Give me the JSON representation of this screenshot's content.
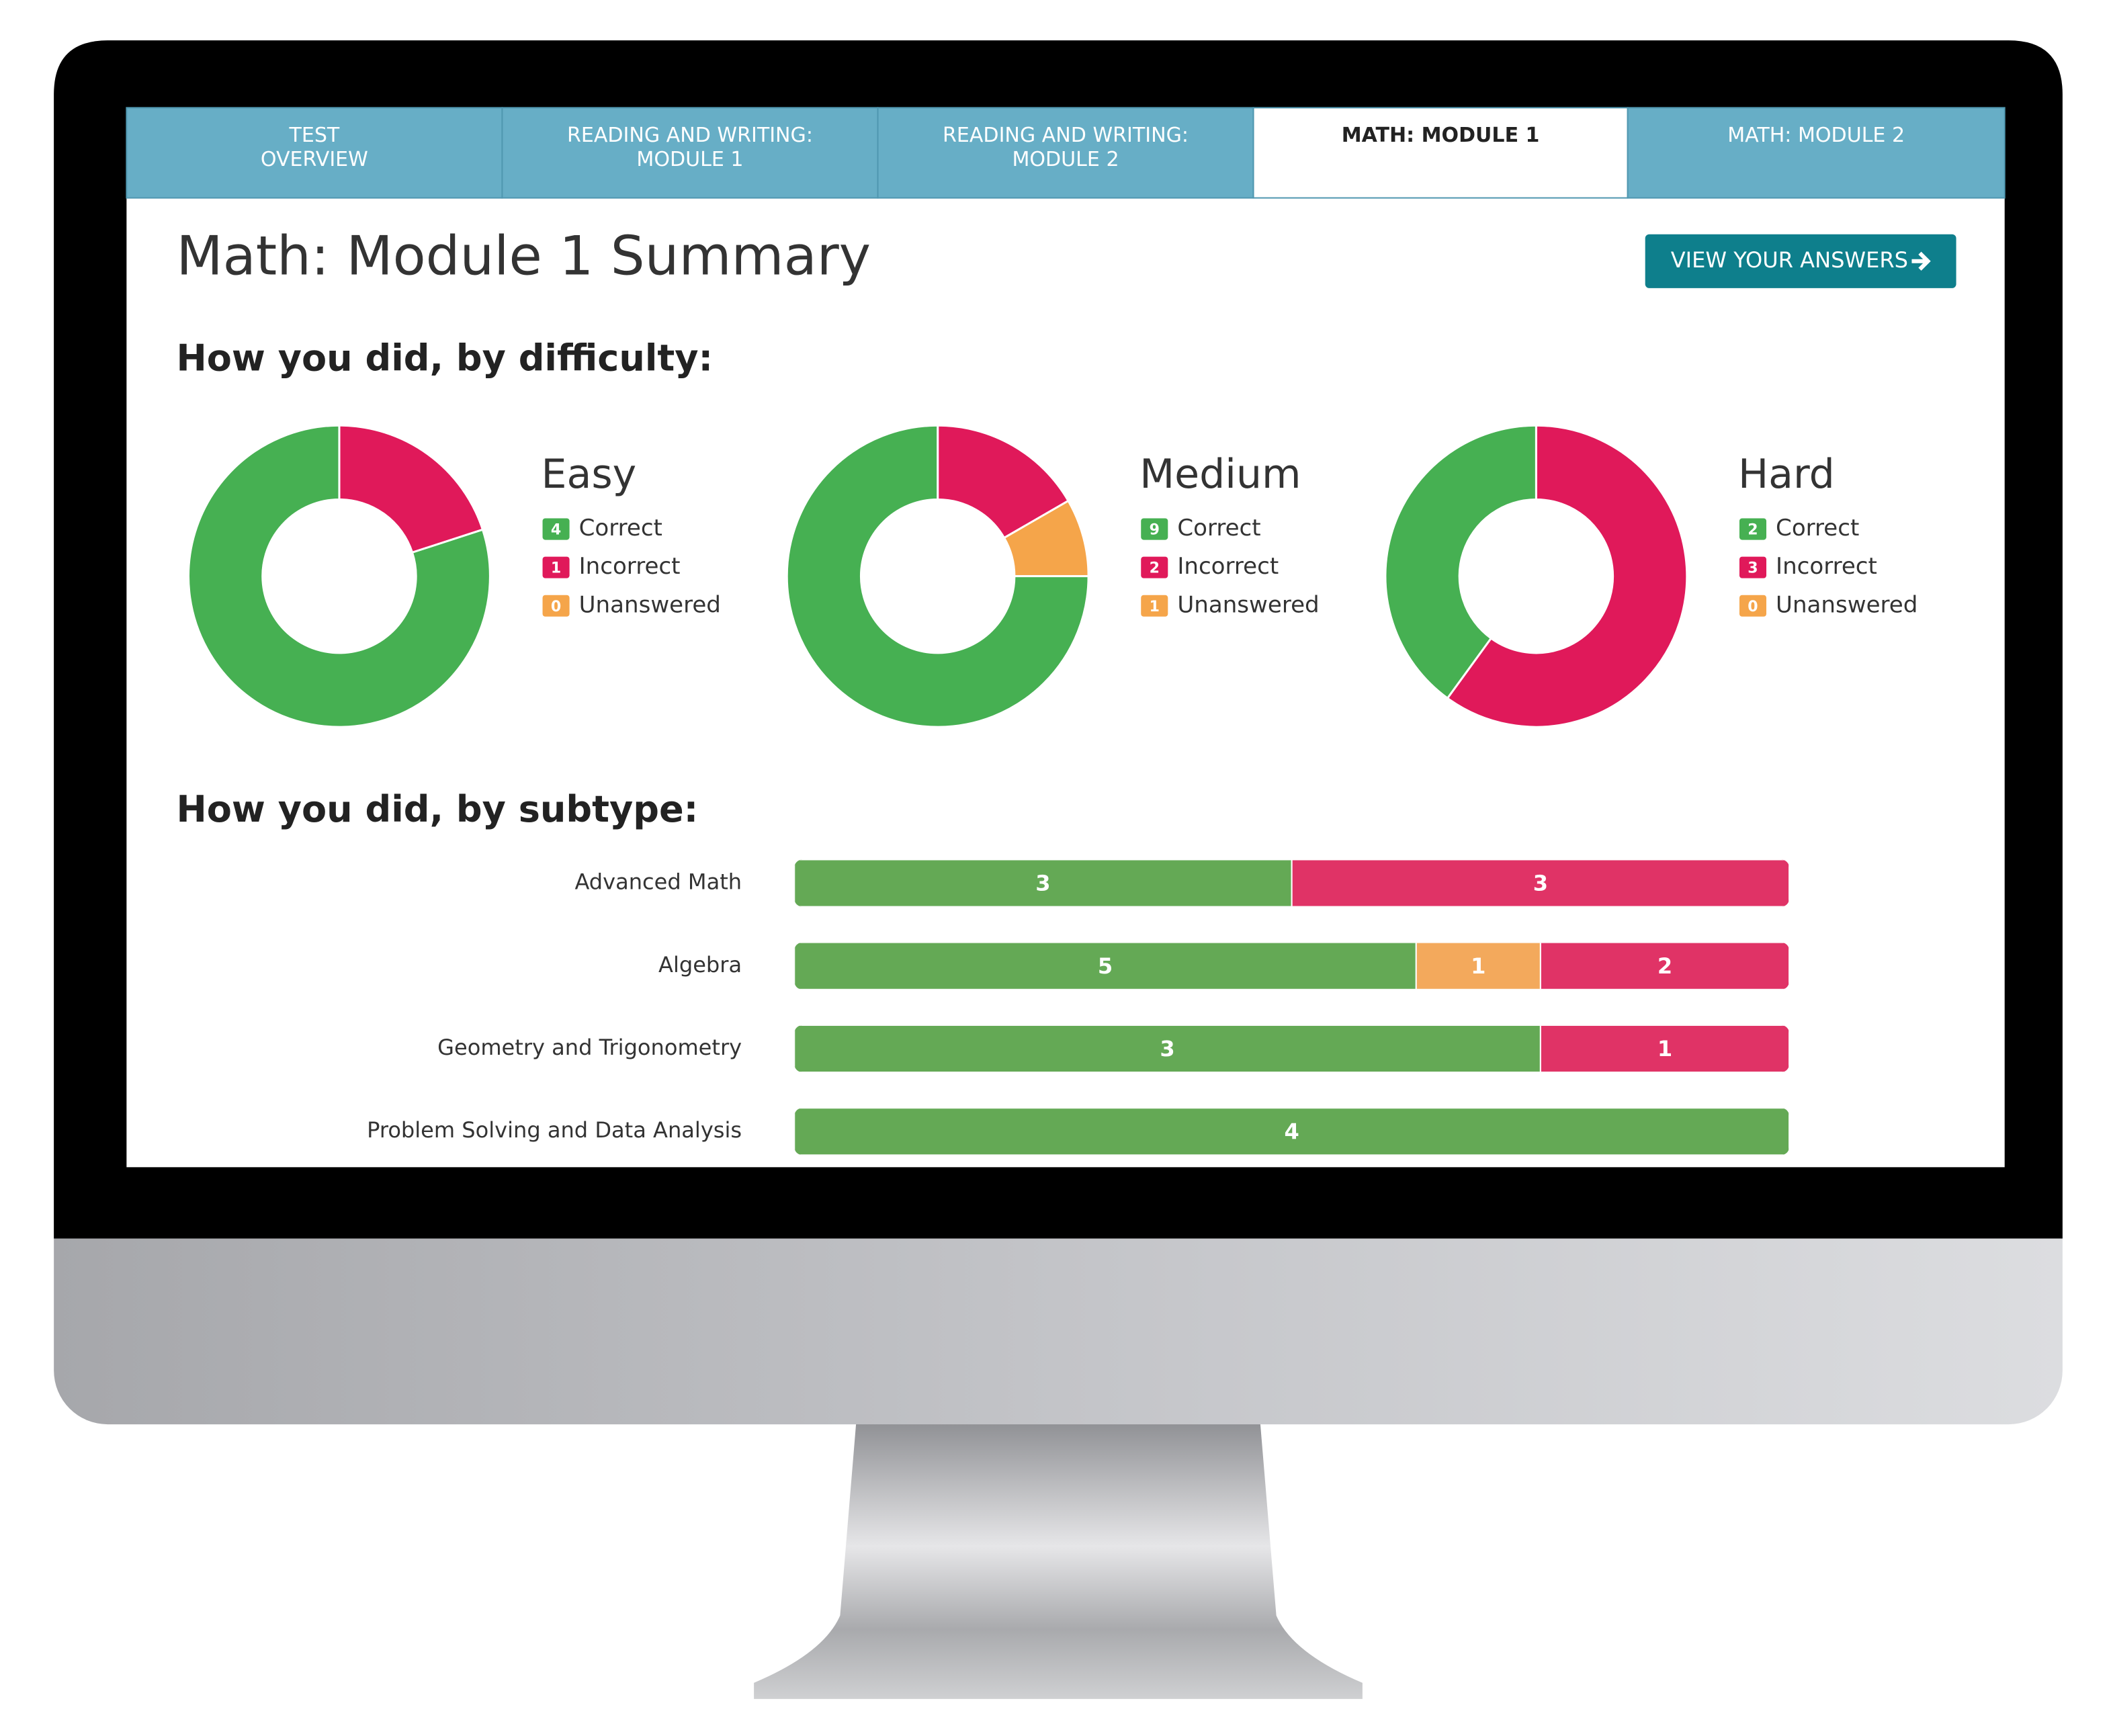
{
  "tabs": [
    {
      "label": [
        "TEST",
        "OVERVIEW"
      ],
      "active": false
    },
    {
      "label": [
        "READING AND WRITING:",
        "MODULE 1"
      ],
      "active": false
    },
    {
      "label": [
        "READING AND WRITING:",
        "MODULE 2"
      ],
      "active": false
    },
    {
      "label": [
        "MATH: MODULE 1"
      ],
      "active": true
    },
    {
      "label": [
        "MATH: MODULE 2"
      ],
      "active": false
    }
  ],
  "title": "Math: Module 1 Summary",
  "button": "VIEW YOUR ANSWERS",
  "difficulty_heading": "How you did, by difficulty:",
  "chart_data": [
    {
      "type": "donut",
      "title": "Easy",
      "categories": [
        "Correct",
        "Incorrect",
        "Unanswered"
      ],
      "values": [
        4,
        1,
        0
      ],
      "colors": [
        "#46b052",
        "#e0195a",
        "#f5a54a"
      ]
    },
    {
      "type": "donut",
      "title": "Medium",
      "categories": [
        "Correct",
        "Incorrect",
        "Unanswered"
      ],
      "values": [
        9,
        2,
        1
      ],
      "colors": [
        "#46b052",
        "#e0195a",
        "#f5a54a"
      ]
    },
    {
      "type": "donut",
      "title": "Hard",
      "categories": [
        "Correct",
        "Incorrect",
        "Unanswered"
      ],
      "values": [
        2,
        3,
        0
      ],
      "colors": [
        "#46b052",
        "#e0195a",
        "#f5a54a"
      ]
    },
    {
      "type": "stacked-bar",
      "title": "How you did, by subtype:",
      "categories": [
        "Advanced Math",
        "Algebra",
        "Geometry and Trigonometry",
        "Problem Solving and Data Analysis"
      ],
      "series": [
        {
          "color": "#64a955",
          "values": [
            3,
            5,
            3,
            4
          ]
        },
        {
          "color": "#f3a95c",
          "values": [
            null,
            1,
            null,
            null
          ]
        },
        {
          "color": "#e03366",
          "values": [
            3,
            2,
            1,
            null
          ]
        }
      ]
    }
  ]
}
